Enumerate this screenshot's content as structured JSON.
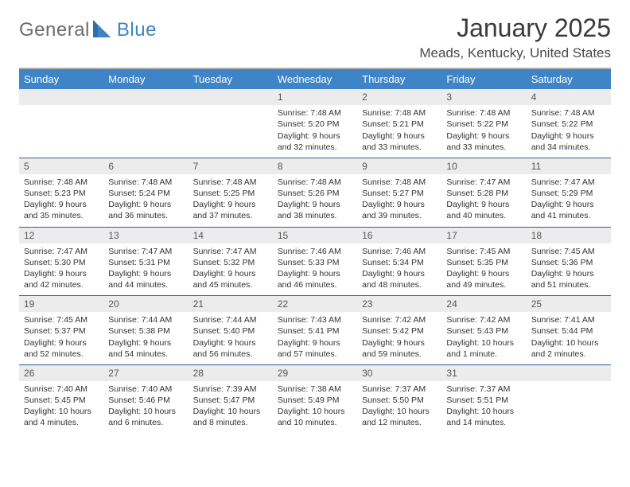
{
  "brand": {
    "word1": "General",
    "word2": "Blue",
    "word1_color": "#6b6b6b",
    "word2_color": "#3e84c6"
  },
  "title": "January 2025",
  "location": "Meads, Kentucky, United States",
  "colors": {
    "header_bg": "#3e84c6",
    "header_text": "#ffffff",
    "daynum_bg": "#ececec",
    "week_sep": "#2f5f8f",
    "top_rule": "#b0b0b0",
    "body_text": "#333333"
  },
  "weekdays": [
    "Sunday",
    "Monday",
    "Tuesday",
    "Wednesday",
    "Thursday",
    "Friday",
    "Saturday"
  ],
  "weeks": [
    [
      null,
      null,
      null,
      {
        "n": "1",
        "sr": "Sunrise: 7:48 AM",
        "ss": "Sunset: 5:20 PM",
        "d1": "Daylight: 9 hours",
        "d2": "and 32 minutes."
      },
      {
        "n": "2",
        "sr": "Sunrise: 7:48 AM",
        "ss": "Sunset: 5:21 PM",
        "d1": "Daylight: 9 hours",
        "d2": "and 33 minutes."
      },
      {
        "n": "3",
        "sr": "Sunrise: 7:48 AM",
        "ss": "Sunset: 5:22 PM",
        "d1": "Daylight: 9 hours",
        "d2": "and 33 minutes."
      },
      {
        "n": "4",
        "sr": "Sunrise: 7:48 AM",
        "ss": "Sunset: 5:22 PM",
        "d1": "Daylight: 9 hours",
        "d2": "and 34 minutes."
      }
    ],
    [
      {
        "n": "5",
        "sr": "Sunrise: 7:48 AM",
        "ss": "Sunset: 5:23 PM",
        "d1": "Daylight: 9 hours",
        "d2": "and 35 minutes."
      },
      {
        "n": "6",
        "sr": "Sunrise: 7:48 AM",
        "ss": "Sunset: 5:24 PM",
        "d1": "Daylight: 9 hours",
        "d2": "and 36 minutes."
      },
      {
        "n": "7",
        "sr": "Sunrise: 7:48 AM",
        "ss": "Sunset: 5:25 PM",
        "d1": "Daylight: 9 hours",
        "d2": "and 37 minutes."
      },
      {
        "n": "8",
        "sr": "Sunrise: 7:48 AM",
        "ss": "Sunset: 5:26 PM",
        "d1": "Daylight: 9 hours",
        "d2": "and 38 minutes."
      },
      {
        "n": "9",
        "sr": "Sunrise: 7:48 AM",
        "ss": "Sunset: 5:27 PM",
        "d1": "Daylight: 9 hours",
        "d2": "and 39 minutes."
      },
      {
        "n": "10",
        "sr": "Sunrise: 7:47 AM",
        "ss": "Sunset: 5:28 PM",
        "d1": "Daylight: 9 hours",
        "d2": "and 40 minutes."
      },
      {
        "n": "11",
        "sr": "Sunrise: 7:47 AM",
        "ss": "Sunset: 5:29 PM",
        "d1": "Daylight: 9 hours",
        "d2": "and 41 minutes."
      }
    ],
    [
      {
        "n": "12",
        "sr": "Sunrise: 7:47 AM",
        "ss": "Sunset: 5:30 PM",
        "d1": "Daylight: 9 hours",
        "d2": "and 42 minutes."
      },
      {
        "n": "13",
        "sr": "Sunrise: 7:47 AM",
        "ss": "Sunset: 5:31 PM",
        "d1": "Daylight: 9 hours",
        "d2": "and 44 minutes."
      },
      {
        "n": "14",
        "sr": "Sunrise: 7:47 AM",
        "ss": "Sunset: 5:32 PM",
        "d1": "Daylight: 9 hours",
        "d2": "and 45 minutes."
      },
      {
        "n": "15",
        "sr": "Sunrise: 7:46 AM",
        "ss": "Sunset: 5:33 PM",
        "d1": "Daylight: 9 hours",
        "d2": "and 46 minutes."
      },
      {
        "n": "16",
        "sr": "Sunrise: 7:46 AM",
        "ss": "Sunset: 5:34 PM",
        "d1": "Daylight: 9 hours",
        "d2": "and 48 minutes."
      },
      {
        "n": "17",
        "sr": "Sunrise: 7:45 AM",
        "ss": "Sunset: 5:35 PM",
        "d1": "Daylight: 9 hours",
        "d2": "and 49 minutes."
      },
      {
        "n": "18",
        "sr": "Sunrise: 7:45 AM",
        "ss": "Sunset: 5:36 PM",
        "d1": "Daylight: 9 hours",
        "d2": "and 51 minutes."
      }
    ],
    [
      {
        "n": "19",
        "sr": "Sunrise: 7:45 AM",
        "ss": "Sunset: 5:37 PM",
        "d1": "Daylight: 9 hours",
        "d2": "and 52 minutes."
      },
      {
        "n": "20",
        "sr": "Sunrise: 7:44 AM",
        "ss": "Sunset: 5:38 PM",
        "d1": "Daylight: 9 hours",
        "d2": "and 54 minutes."
      },
      {
        "n": "21",
        "sr": "Sunrise: 7:44 AM",
        "ss": "Sunset: 5:40 PM",
        "d1": "Daylight: 9 hours",
        "d2": "and 56 minutes."
      },
      {
        "n": "22",
        "sr": "Sunrise: 7:43 AM",
        "ss": "Sunset: 5:41 PM",
        "d1": "Daylight: 9 hours",
        "d2": "and 57 minutes."
      },
      {
        "n": "23",
        "sr": "Sunrise: 7:42 AM",
        "ss": "Sunset: 5:42 PM",
        "d1": "Daylight: 9 hours",
        "d2": "and 59 minutes."
      },
      {
        "n": "24",
        "sr": "Sunrise: 7:42 AM",
        "ss": "Sunset: 5:43 PM",
        "d1": "Daylight: 10 hours",
        "d2": "and 1 minute."
      },
      {
        "n": "25",
        "sr": "Sunrise: 7:41 AM",
        "ss": "Sunset: 5:44 PM",
        "d1": "Daylight: 10 hours",
        "d2": "and 2 minutes."
      }
    ],
    [
      {
        "n": "26",
        "sr": "Sunrise: 7:40 AM",
        "ss": "Sunset: 5:45 PM",
        "d1": "Daylight: 10 hours",
        "d2": "and 4 minutes."
      },
      {
        "n": "27",
        "sr": "Sunrise: 7:40 AM",
        "ss": "Sunset: 5:46 PM",
        "d1": "Daylight: 10 hours",
        "d2": "and 6 minutes."
      },
      {
        "n": "28",
        "sr": "Sunrise: 7:39 AM",
        "ss": "Sunset: 5:47 PM",
        "d1": "Daylight: 10 hours",
        "d2": "and 8 minutes."
      },
      {
        "n": "29",
        "sr": "Sunrise: 7:38 AM",
        "ss": "Sunset: 5:49 PM",
        "d1": "Daylight: 10 hours",
        "d2": "and 10 minutes."
      },
      {
        "n": "30",
        "sr": "Sunrise: 7:37 AM",
        "ss": "Sunset: 5:50 PM",
        "d1": "Daylight: 10 hours",
        "d2": "and 12 minutes."
      },
      {
        "n": "31",
        "sr": "Sunrise: 7:37 AM",
        "ss": "Sunset: 5:51 PM",
        "d1": "Daylight: 10 hours",
        "d2": "and 14 minutes."
      },
      null
    ]
  ]
}
